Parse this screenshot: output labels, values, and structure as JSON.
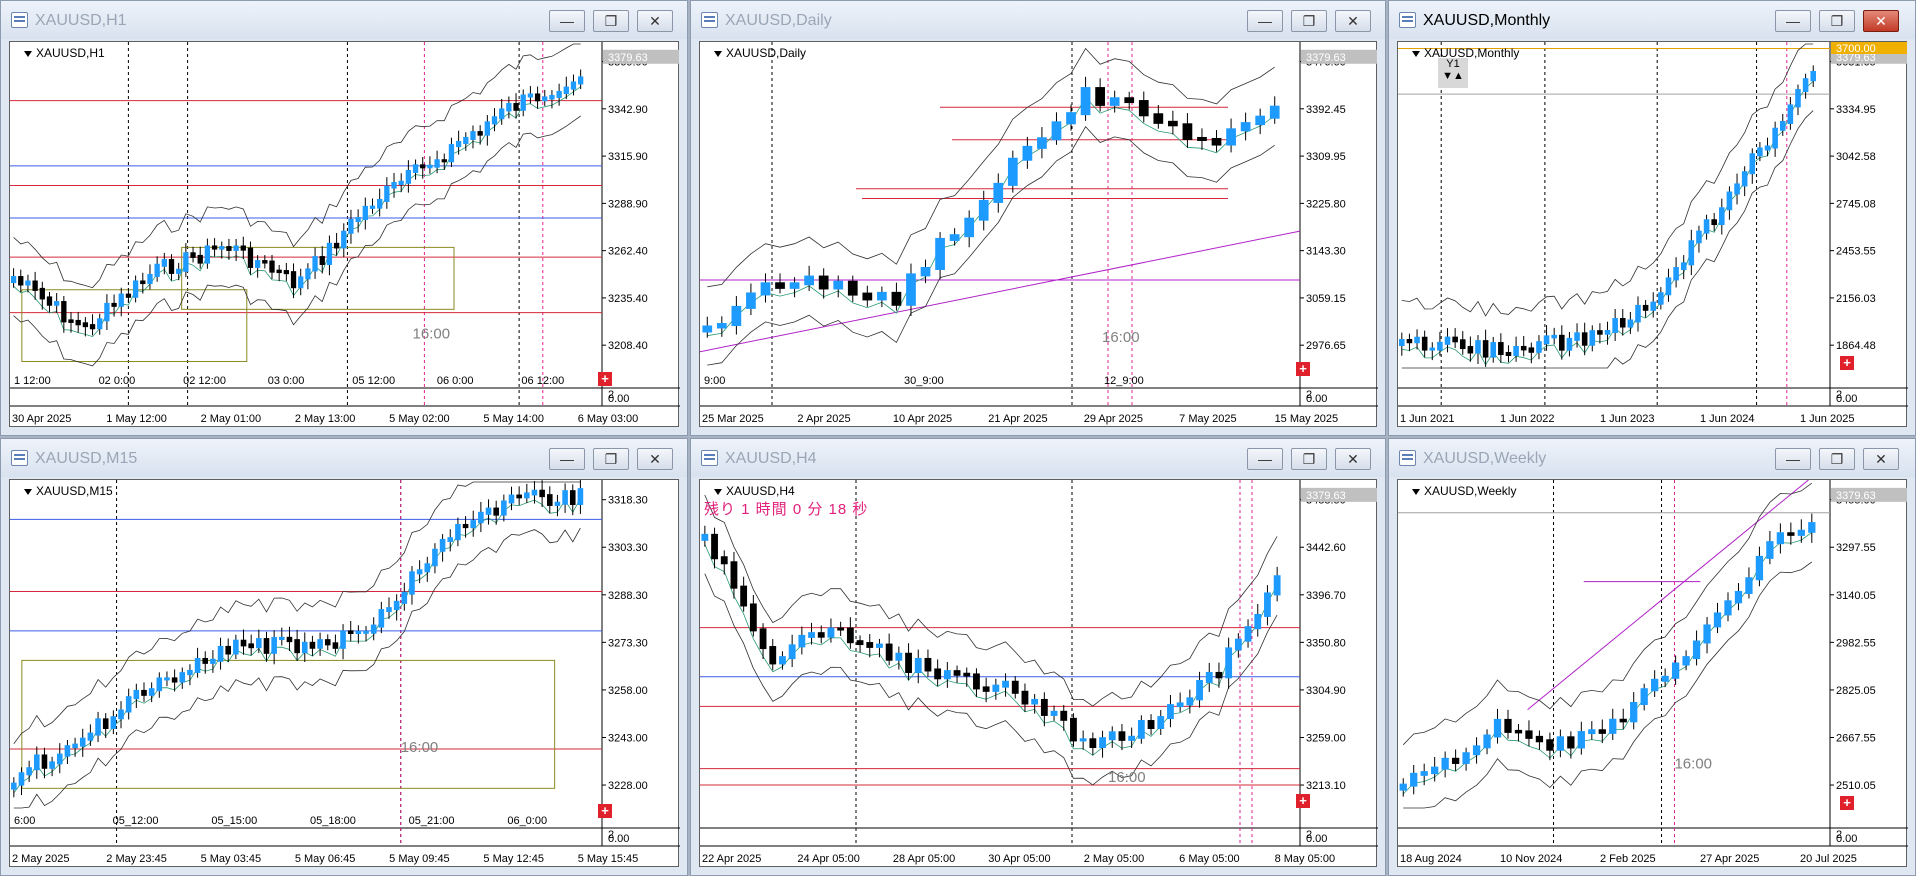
{
  "windows": [
    {
      "title": "XAUUSD,H1",
      "label": "XAUUSD,H1",
      "price_tag": "3379.63",
      "y_ticks": [
        "3369.90",
        "3342.90",
        "3315.90",
        "3288.90",
        "3262.40",
        "3235.40",
        "3208.40"
      ],
      "x_ticks": [
        "30 Apr 2025",
        "1 May 12:00",
        "2 May 01:00",
        "2 May 13:00",
        "5 May 02:00",
        "5 May 14:00",
        "6 May 03:00"
      ],
      "inner_ticks": [
        "1 12:00",
        "02 0:00",
        "02 12:00",
        "03 0:00",
        "05 12:00",
        "06 0:00",
        "06 12:00"
      ],
      "session_label": "16:00"
    },
    {
      "title": "XAUUSD,Daily",
      "label": "XAUUSD,Daily",
      "price_tag": "3379.63",
      "y_ticks": [
        "3476.60",
        "3392.45",
        "3309.95",
        "3225.80",
        "3143.30",
        "3059.15",
        "2976.65"
      ],
      "x_ticks": [
        "25 Mar 2025",
        "2 Apr 2025",
        "10 Apr 2025",
        "21 Apr 2025",
        "29 Apr 2025",
        "7 May 2025",
        "15 May 2025"
      ],
      "inner_ticks": [
        "9:00",
        "30_9:00",
        "12_9:00"
      ],
      "session_label": "16:00"
    },
    {
      "title": "XAUUSD,Monthly",
      "label": "XAUUSD,Monthly",
      "price_tag": "3379.63",
      "high_tag": "3700.00",
      "y_ticks": [
        "3631.65",
        "3334.95",
        "3042.58",
        "2745.08",
        "2453.55",
        "2156.03",
        "1864.48"
      ],
      "x_ticks": [
        "1 Jun 2021",
        "1 Jun 2022",
        "1 Jun 2023",
        "1 Jun 2024",
        "1 Jun 2025"
      ],
      "y1": "Y1"
    },
    {
      "title": "XAUUSD,M15",
      "label": "XAUUSD,M15",
      "price_tag": "",
      "y_ticks": [
        "3318.30",
        "3303.30",
        "3288.30",
        "3273.30",
        "3258.00",
        "3243.00",
        "3228.00"
      ],
      "x_ticks": [
        "2 May 2025",
        "2 May 23:45",
        "5 May 03:45",
        "5 May 06:45",
        "5 May 09:45",
        "5 May 12:45",
        "5 May 15:45"
      ],
      "inner_ticks": [
        "6:00",
        "05_12:00",
        "05_15:00",
        "05_18:00",
        "05_21:00",
        "06_0:00"
      ],
      "session_label": "16:00"
    },
    {
      "title": "XAUUSD,H4",
      "label": "XAUUSD,H4",
      "price_tag": "3379.63",
      "timer": "残り 1 時間 0 分 18 秒",
      "y_ticks": [
        "3488.50",
        "3442.60",
        "3396.70",
        "3350.80",
        "3304.90",
        "3259.00",
        "3213.10"
      ],
      "x_ticks": [
        "22 Apr 2025",
        "24 Apr 05:00",
        "28 Apr 05:00",
        "30 Apr 05:00",
        "2 May 05:00",
        "6 May 05:00",
        "8 May 05:00"
      ],
      "session_label": "16:00"
    },
    {
      "title": "XAUUSD,Weekly",
      "label": "XAUUSD,Weekly",
      "price_tag": "3379.63",
      "y_ticks": [
        "3455.00",
        "3297.55",
        "3140.05",
        "2982.55",
        "2825.05",
        "2667.55",
        "2510.05"
      ],
      "x_ticks": [
        "18 Aug 2024",
        "10 Nov 2024",
        "2 Feb 2025",
        "27 Apr 2025",
        "20 Jul 2025"
      ],
      "session_label": "16:00"
    }
  ],
  "sub_axis": {
    "top": "2",
    "bottom": "0.00"
  },
  "buttons": {
    "minimize": "—",
    "maximize": "❐",
    "close": "✕"
  },
  "colors": {
    "bull": "#1e9bff",
    "bear": "#000000",
    "red_line": "#d6283a",
    "blue_line": "#3a5ce8",
    "purple": "#b021c8",
    "band": "#303030",
    "ma": "#2a9a76"
  }
}
